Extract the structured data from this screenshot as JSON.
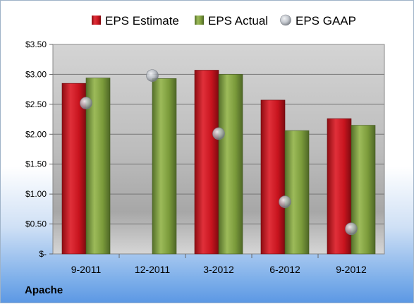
{
  "company": "Apache",
  "colors": {
    "estimate": "#c8141e",
    "actual": "#7a9a3a",
    "gaap": "#b9bec6"
  },
  "chart_data": {
    "type": "bar",
    "categories": [
      "9-2011",
      "12-2011",
      "3-2012",
      "6-2012",
      "9-2012"
    ],
    "series": [
      {
        "name": "EPS Estimate",
        "type": "bar",
        "values": [
          2.85,
          null,
          3.07,
          2.57,
          2.26
        ]
      },
      {
        "name": "EPS Actual",
        "type": "bar",
        "values": [
          2.94,
          2.93,
          3.0,
          2.06,
          2.15
        ]
      },
      {
        "name": "EPS GAAP",
        "type": "scatter",
        "values": [
          2.52,
          2.98,
          2.01,
          0.87,
          0.42
        ]
      }
    ],
    "ylim": [
      0,
      3.5
    ],
    "ytick_values": [
      0,
      0.5,
      1.0,
      1.5,
      2.0,
      2.5,
      3.0,
      3.5
    ],
    "ytick_labels": [
      "$-",
      "$0.50",
      "$1.00",
      "$1.50",
      "$2.00",
      "$2.50",
      "$3.00",
      "$3.50"
    ],
    "grid": true,
    "legend_position": "top"
  }
}
